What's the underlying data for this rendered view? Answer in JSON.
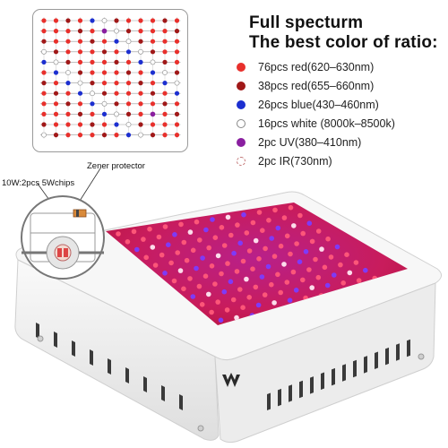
{
  "title_line1": "Full specturm",
  "title_line2": "The best color of ratio:",
  "legend": [
    {
      "label": "76pcs red(620–630nm)",
      "color": "#e8302c",
      "style": "solid"
    },
    {
      "label": "38pcs red(655–660nm)",
      "color": "#a01818",
      "style": "solid"
    },
    {
      "label": "26pcs blue(430–460nm)",
      "color": "#1c2fd0",
      "style": "solid"
    },
    {
      "label": "16pcs white (8000k–8500k)",
      "color": "#ffffff",
      "style": "outline"
    },
    {
      "label": "2pc UV(380–410nm)",
      "color": "#8a1fa0",
      "style": "solid"
    },
    {
      "label": "2pc IR(730nm)",
      "color": "#ffffff",
      "style": "dashed"
    }
  ],
  "callouts": {
    "zener": "Zener protector",
    "chips": "10W:2pcs 5Wchips"
  },
  "colors": {
    "led_red": "#e8302c",
    "led_deep_red": "#a01818",
    "led_blue": "#1c2fd0",
    "led_uv": "#8a1fa0",
    "panel_glow": "#c0206a",
    "housing": "#f4f4f4"
  }
}
